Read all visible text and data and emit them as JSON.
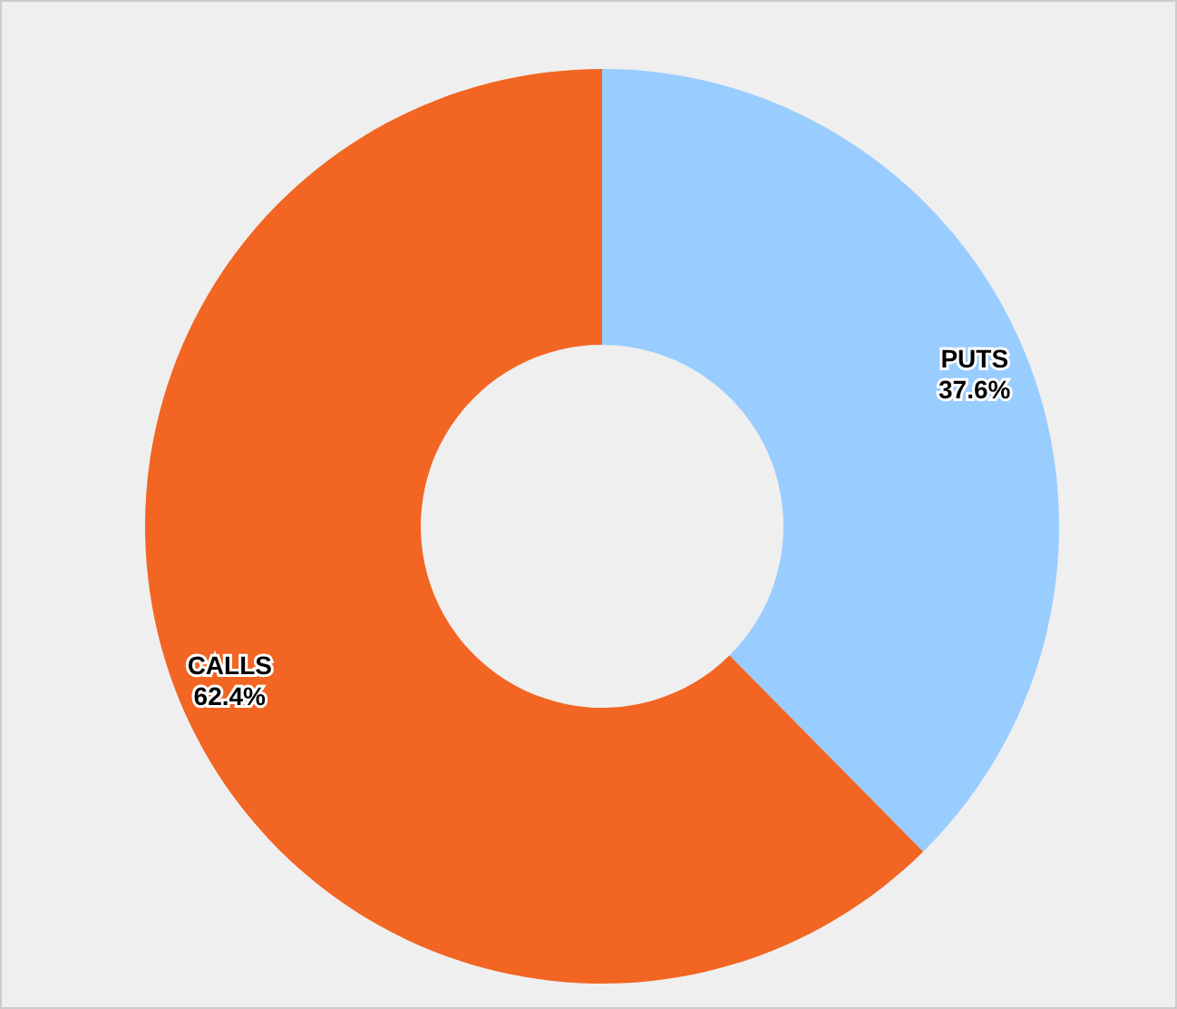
{
  "chart_data": {
    "type": "donut",
    "categories": [
      "PUTS",
      "CALLS"
    ],
    "values": [
      37.6,
      62.4
    ],
    "colors": [
      "#99ccff",
      "#f26522"
    ],
    "value_labels": [
      "37.6%",
      "62.4%"
    ]
  }
}
